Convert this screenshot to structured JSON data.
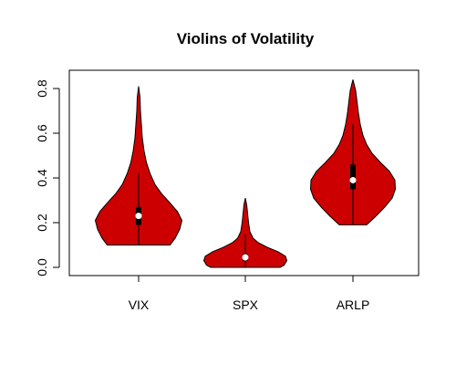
{
  "chart_data": {
    "type": "violin",
    "title": "Violins of Volatility",
    "xlabel": "",
    "ylabel": "",
    "ylim": [
      -0.03,
      0.86
    ],
    "y_ticks": [
      {
        "value": 0.0,
        "label": "0.0"
      },
      {
        "value": 0.2,
        "label": "0.2"
      },
      {
        "value": 0.4,
        "label": "0.4"
      },
      {
        "value": 0.6,
        "label": "0.6"
      },
      {
        "value": 0.8,
        "label": "0.8"
      }
    ],
    "categories": [
      "VIX",
      "SPX",
      "ARLP"
    ],
    "fill_color": "#cc0000",
    "series": [
      {
        "category": "VIX",
        "min": 0.1,
        "max": 0.81,
        "q1": 0.19,
        "median": 0.23,
        "q3": 0.27,
        "whisker_low": 0.1,
        "whisker_high": 0.42,
        "density": [
          [
            0.1,
            0.69
          ],
          [
            0.13,
            0.8
          ],
          [
            0.17,
            0.9
          ],
          [
            0.21,
            0.95
          ],
          [
            0.25,
            0.85
          ],
          [
            0.29,
            0.68
          ],
          [
            0.33,
            0.5
          ],
          [
            0.37,
            0.36
          ],
          [
            0.42,
            0.25
          ],
          [
            0.47,
            0.17
          ],
          [
            0.52,
            0.12
          ],
          [
            0.58,
            0.08
          ],
          [
            0.64,
            0.06
          ],
          [
            0.7,
            0.04
          ],
          [
            0.76,
            0.03
          ],
          [
            0.81,
            0.0
          ]
        ]
      },
      {
        "category": "SPX",
        "min": 0.0,
        "max": 0.31,
        "q1": 0.03,
        "median": 0.045,
        "q3": 0.06,
        "whisker_low": 0.0,
        "whisker_high": 0.15,
        "density": [
          [
            0.0,
            0.76
          ],
          [
            0.01,
            0.85
          ],
          [
            0.03,
            0.91
          ],
          [
            0.05,
            0.88
          ],
          [
            0.07,
            0.72
          ],
          [
            0.09,
            0.48
          ],
          [
            0.11,
            0.29
          ],
          [
            0.13,
            0.17
          ],
          [
            0.16,
            0.1
          ],
          [
            0.2,
            0.07
          ],
          [
            0.24,
            0.05
          ],
          [
            0.28,
            0.03
          ],
          [
            0.31,
            0.0
          ]
        ]
      },
      {
        "category": "ARLP",
        "min": 0.19,
        "max": 0.84,
        "q1": 0.35,
        "median": 0.39,
        "q3": 0.46,
        "whisker_low": 0.19,
        "whisker_high": 0.64,
        "density": [
          [
            0.19,
            0.3
          ],
          [
            0.23,
            0.51
          ],
          [
            0.27,
            0.7
          ],
          [
            0.31,
            0.86
          ],
          [
            0.35,
            0.93
          ],
          [
            0.39,
            0.92
          ],
          [
            0.43,
            0.8
          ],
          [
            0.47,
            0.6
          ],
          [
            0.51,
            0.42
          ],
          [
            0.55,
            0.3
          ],
          [
            0.59,
            0.22
          ],
          [
            0.64,
            0.16
          ],
          [
            0.69,
            0.12
          ],
          [
            0.74,
            0.09
          ],
          [
            0.79,
            0.06
          ],
          [
            0.84,
            0.0
          ]
        ]
      }
    ]
  }
}
